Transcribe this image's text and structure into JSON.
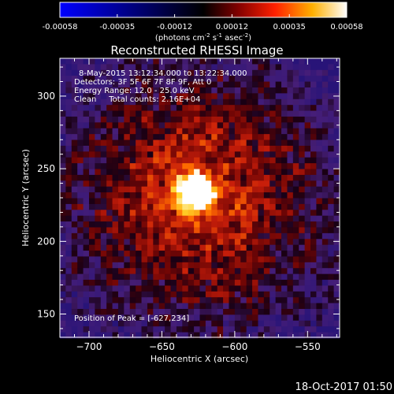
{
  "chart_data": {
    "type": "heatmap",
    "title": "Reconstructed RHESSI Image",
    "xlabel": "Heliocentric X (arcsec)",
    "ylabel": "Heliocentric Y (arcsec)",
    "xlim": [
      -720,
      -528
    ],
    "ylim": [
      134,
      326
    ],
    "xticks": [
      -700,
      -650,
      -600,
      -550
    ],
    "yticks": [
      150,
      200,
      250,
      300
    ],
    "colorbar": {
      "range": [
        -0.00058,
        0.00058
      ],
      "ticks": [
        "-0.00058",
        "-0.00035",
        "-0.00012",
        "0.00012",
        "0.00035",
        "0.00058"
      ],
      "unit_label": [
        "(photons cm",
        "-2",
        " s",
        "-1",
        " asec",
        "-2",
        ")"
      ]
    },
    "annotations": [
      "8-May-2015 13:12:34.000 to 13:22:34.000",
      "Detectors: 3F 5F 6F 7F 8F 9F, Att 0",
      "Energy Range: 12.0 - 25.0 keV",
      "Clean     Total counts: 2.16E+04",
      "Position of Peak = [-627,234]"
    ],
    "peak": {
      "x": -627,
      "y": 234
    },
    "colormap": [
      "#0000ff",
      "#000000",
      "#ff0000",
      "#ffff00",
      "#ffffff"
    ]
  },
  "footer": {
    "timestamp": "18-Oct-2017 01:50"
  }
}
